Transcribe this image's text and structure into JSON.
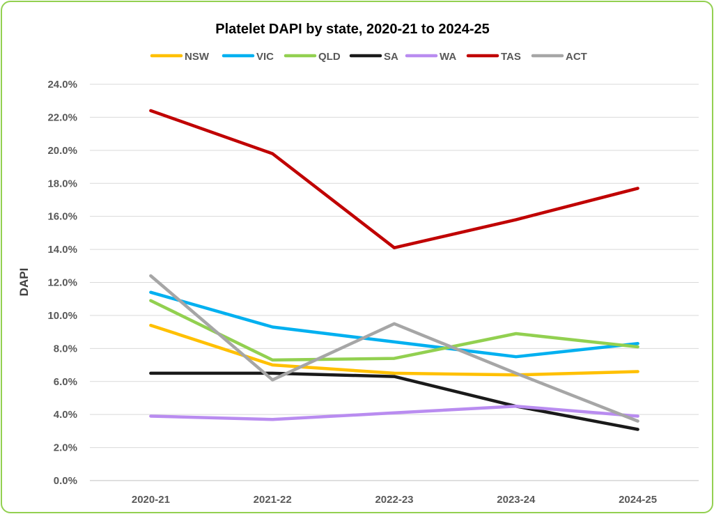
{
  "chart_data": {
    "type": "line",
    "title": "Platelet DAPI by state, 2020-21 to 2024-25",
    "xlabel": "",
    "ylabel": "DAPI",
    "categories": [
      "2020-21",
      "2021-22",
      "2022-23",
      "2023-24",
      "2024-25"
    ],
    "ylim": [
      0,
      24
    ],
    "ytick_step": 2,
    "ytick_labels": [
      "0.0%",
      "2.0%",
      "4.0%",
      "6.0%",
      "8.0%",
      "10.0%",
      "12.0%",
      "14.0%",
      "16.0%",
      "18.0%",
      "20.0%",
      "22.0%",
      "24.0%"
    ],
    "grid": true,
    "legend_position": "top",
    "series": [
      {
        "name": "NSW",
        "color": "#ffc000",
        "values": [
          9.4,
          7.0,
          6.5,
          6.4,
          6.6
        ]
      },
      {
        "name": "VIC",
        "color": "#00b0f0",
        "values": [
          11.4,
          9.3,
          8.4,
          7.5,
          8.3
        ]
      },
      {
        "name": "QLD",
        "color": "#92d050",
        "values": [
          10.9,
          7.3,
          7.4,
          8.9,
          8.1
        ]
      },
      {
        "name": "SA",
        "color": "#1a1a1a",
        "values": [
          6.5,
          6.5,
          6.3,
          4.5,
          3.1
        ]
      },
      {
        "name": "WA",
        "color": "#b98cf0",
        "values": [
          3.9,
          3.7,
          4.1,
          4.5,
          3.9
        ]
      },
      {
        "name": "TAS",
        "color": "#c00000",
        "values": [
          22.4,
          19.8,
          14.1,
          15.8,
          17.7
        ]
      },
      {
        "name": "ACT",
        "color": "#a6a6a6",
        "values": [
          12.4,
          6.1,
          9.5,
          6.5,
          3.6
        ]
      }
    ]
  }
}
